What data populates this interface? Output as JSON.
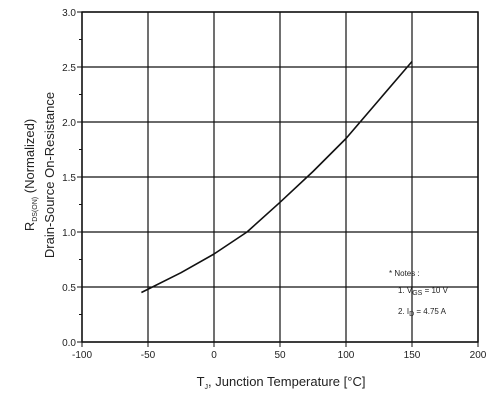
{
  "chart_data": {
    "type": "line",
    "xlim": [
      -100,
      200
    ],
    "ylim": [
      0.0,
      3.0
    ],
    "grid": true,
    "x_ticks": [
      -100,
      -50,
      0,
      50,
      100,
      150,
      200
    ],
    "y_ticks": [
      0.0,
      0.5,
      1.0,
      1.5,
      2.0,
      2.5,
      3.0
    ],
    "x_tick_labels": [
      "-100",
      "-50",
      "0",
      "50",
      "100",
      "150",
      "200"
    ],
    "y_tick_labels": [
      "0.0",
      "0.5",
      "1.0",
      "1.5",
      "2.0",
      "2.5",
      "3.0"
    ],
    "xlabel": {
      "pre": "T",
      "sub": "J",
      "post": ", Junction Temperature [°C]"
    },
    "ylabel": {
      "line1_pre": "R",
      "line1_sub": "DS(ON)",
      "line1_post": " (Normalized)",
      "line2": "Drain-Source On-Resistance"
    },
    "series": [
      {
        "x": [
          -55,
          -25,
          0,
          25,
          50,
          75,
          100,
          125,
          150
        ],
        "y": [
          0.45,
          0.63,
          0.8,
          1.0,
          1.27,
          1.55,
          1.85,
          2.2,
          2.55
        ]
      }
    ],
    "notes": {
      "heading": "* Notes :",
      "line1_pre": "1. V",
      "line1_sub": "GS",
      "line1_post": " = 10 V",
      "line2_pre": "2. I",
      "line2_sub": "D",
      "line2_post": " = 4.75 A"
    }
  }
}
